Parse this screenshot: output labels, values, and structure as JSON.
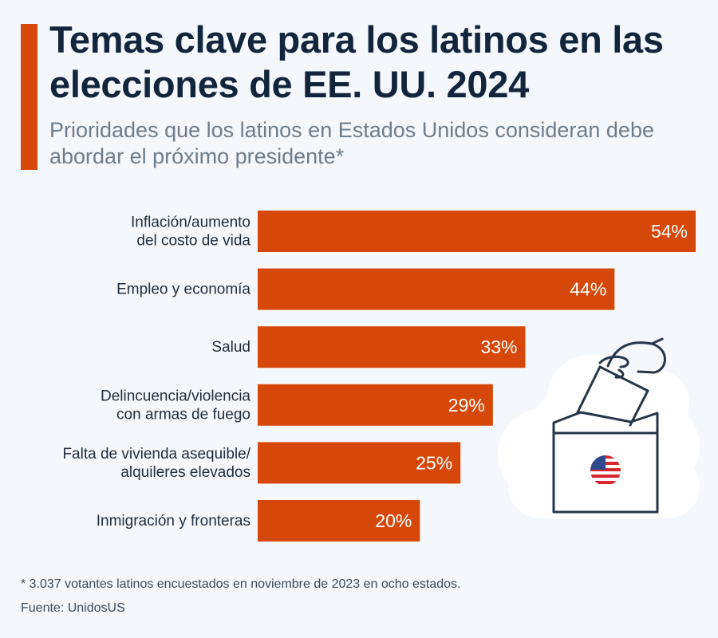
{
  "chart_data": {
    "type": "bar",
    "orientation": "horizontal",
    "title": "Temas clave para los latinos en las elecciones de EE. UU. 2024",
    "subtitle": "Prioridades que los latinos en Estados Unidos consideran debe abordar el próximo presidente*",
    "categories": [
      [
        "Inflación/aumento",
        "del costo de vida"
      ],
      [
        "Empleo y economía"
      ],
      [
        "Salud"
      ],
      [
        "Delincuencia/violencia",
        "con armas de fuego"
      ],
      [
        "Falta de vivienda asequible/",
        "alquileres elevados"
      ],
      [
        "Inmigración y fronteras"
      ]
    ],
    "values": [
      54,
      44,
      33,
      29,
      25,
      20
    ],
    "value_labels": [
      "54%",
      "44%",
      "33%",
      "29%",
      "25%",
      "20%"
    ],
    "xlim": [
      0,
      54
    ],
    "grid": false,
    "bar_color": "#d5480a"
  },
  "footnote": "* 3.037 votantes latinos encuestados en noviembre de 2023 en ocho estados.",
  "source": "Fuente: UnidosUS",
  "colors": {
    "accent": "#d5480a",
    "title": "#12253d",
    "subtitle": "#6e7d8c",
    "background": "#f4f7fb"
  },
  "illustration": {
    "icon": "ballot-box-icon",
    "flag_icon": "us-flag-icon"
  }
}
